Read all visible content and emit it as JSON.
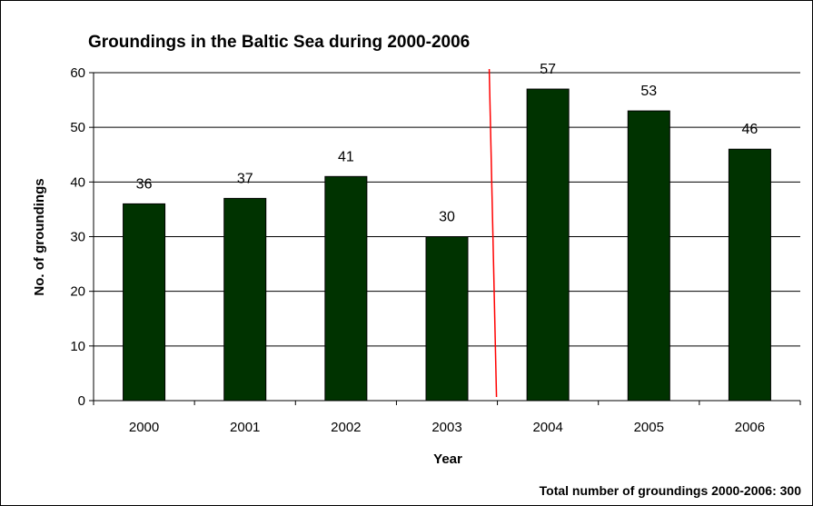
{
  "chart_data": {
    "type": "bar",
    "title": "Groundings in the Baltic Sea during 2000-2006",
    "xlabel": "Year",
    "ylabel": "No. of groundings",
    "categories": [
      "2000",
      "2001",
      "2002",
      "2003",
      "2004",
      "2005",
      "2006"
    ],
    "values": [
      36,
      37,
      41,
      30,
      57,
      53,
      46
    ],
    "ylim": [
      0,
      60
    ],
    "yticks": [
      0,
      10,
      20,
      30,
      40,
      50,
      60
    ],
    "grid": true,
    "bar_color": "#003300",
    "marker_line_color": "#ff0000",
    "marker_line_between": [
      "2003",
      "2004"
    ],
    "footnote": "Total number of groundings 2000-2006: 300"
  }
}
